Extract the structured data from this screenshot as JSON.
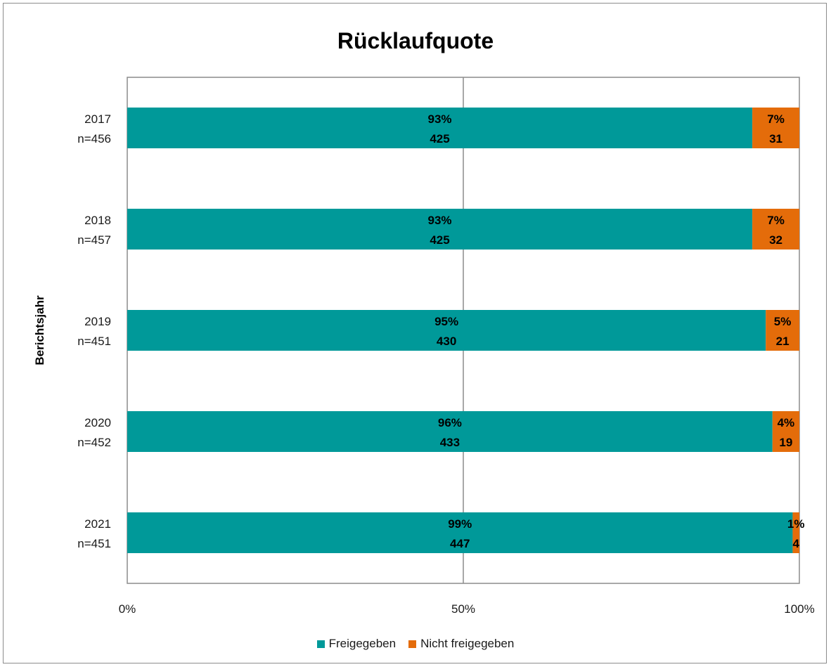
{
  "chart_data": {
    "type": "bar",
    "orientation": "horizontal",
    "stacked": true,
    "title": "Rücklaufquote",
    "ylabel": "Berichtsjahr",
    "xlim": [
      0,
      100
    ],
    "x_tick_labels": [
      "0%",
      "50%",
      "100%"
    ],
    "categories": [
      {
        "year": "2017",
        "n": "n=456"
      },
      {
        "year": "2018",
        "n": "n=457"
      },
      {
        "year": "2019",
        "n": "n=451"
      },
      {
        "year": "2020",
        "n": "n=452"
      },
      {
        "year": "2021",
        "n": "n=451"
      }
    ],
    "series": [
      {
        "name": "Freigegeben",
        "color": "#009999",
        "percent": [
          93,
          93,
          95,
          96,
          99
        ],
        "percent_labels": [
          "93%",
          "93%",
          "95%",
          "96%",
          "99%"
        ],
        "counts": [
          "425",
          "425",
          "430",
          "433",
          "447"
        ]
      },
      {
        "name": "Nicht freigegeben",
        "color": "#e46c0a",
        "percent": [
          7,
          7,
          5,
          4,
          1
        ],
        "percent_labels": [
          "7%",
          "7%",
          "5%",
          "4%",
          "1%"
        ],
        "counts": [
          "31",
          "32",
          "21",
          "19",
          "4"
        ]
      }
    ],
    "grid": "vertical at 50%",
    "legend_position": "bottom"
  }
}
